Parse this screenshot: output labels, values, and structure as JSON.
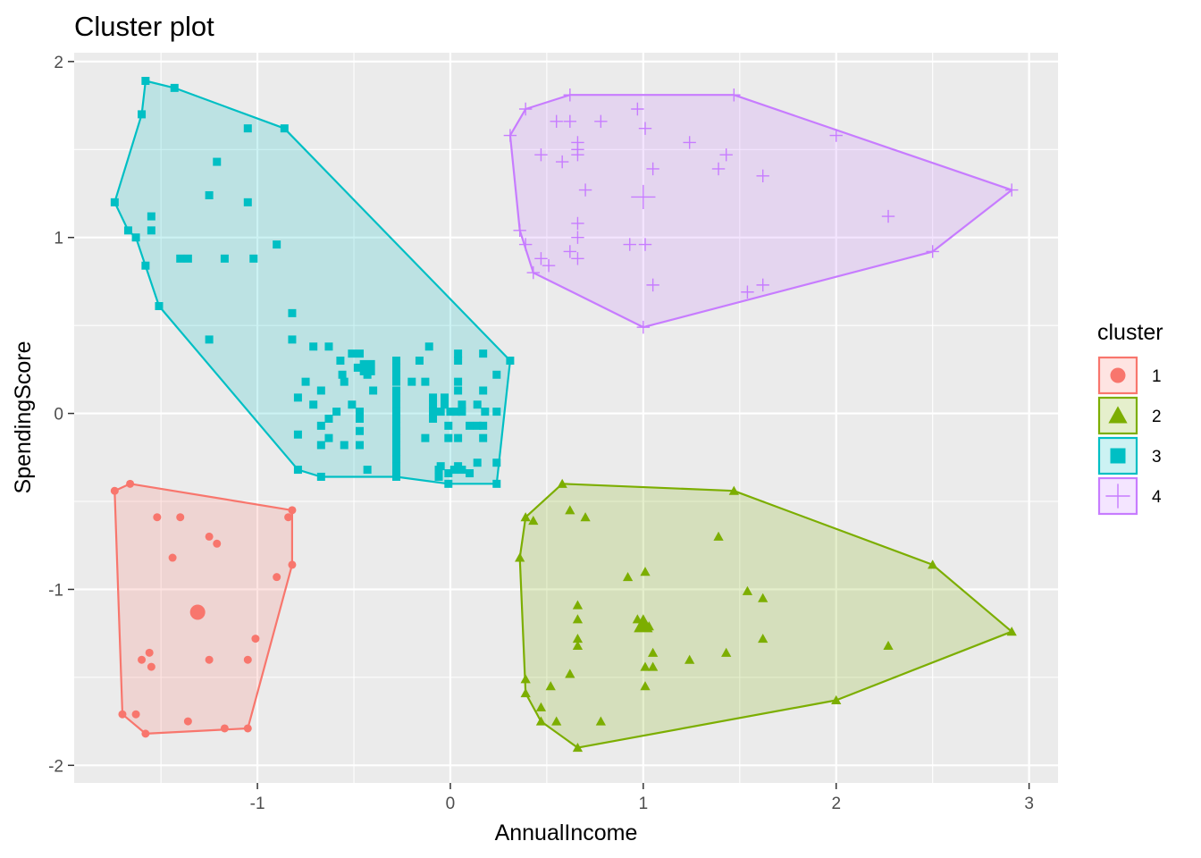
{
  "chart_data": {
    "type": "scatter",
    "title": "Cluster plot",
    "xlabel": "AnnualIncome",
    "ylabel": "SpendingScore",
    "xlim": [
      -1.95,
      3.15
    ],
    "ylim": [
      -2.1,
      2.05
    ],
    "xticks": [
      -1,
      0,
      1,
      2,
      3
    ],
    "yticks": [
      -2,
      -1,
      0,
      1,
      2
    ],
    "grid": true,
    "legend": {
      "title": "cluster",
      "position": "right"
    },
    "series": [
      {
        "name": "1",
        "shape": "circle",
        "color": "#F8766D",
        "hull": [
          [
            -1.74,
            -0.44
          ],
          [
            -1.66,
            -0.4
          ],
          [
            -0.82,
            -0.55
          ],
          [
            -0.82,
            -0.86
          ],
          [
            -1.05,
            -1.79
          ],
          [
            -1.58,
            -1.82
          ],
          [
            -1.7,
            -1.71
          ]
        ],
        "centroid": [
          -1.31,
          -1.13
        ],
        "points": [
          [
            -1.74,
            -0.44
          ],
          [
            -1.66,
            -0.4
          ],
          [
            -1.52,
            -0.59
          ],
          [
            -1.4,
            -0.59
          ],
          [
            -0.84,
            -0.59
          ],
          [
            -0.82,
            -0.55
          ],
          [
            -1.25,
            -0.7
          ],
          [
            -1.21,
            -0.74
          ],
          [
            -1.44,
            -0.82
          ],
          [
            -0.82,
            -0.86
          ],
          [
            -0.9,
            -0.93
          ],
          [
            -1.01,
            -1.28
          ],
          [
            -1.56,
            -1.36
          ],
          [
            -1.6,
            -1.4
          ],
          [
            -1.55,
            -1.44
          ],
          [
            -1.25,
            -1.4
          ],
          [
            -1.05,
            -1.4
          ],
          [
            -1.7,
            -1.71
          ],
          [
            -1.63,
            -1.71
          ],
          [
            -1.36,
            -1.75
          ],
          [
            -1.17,
            -1.79
          ],
          [
            -1.05,
            -1.79
          ],
          [
            -1.58,
            -1.82
          ]
        ]
      },
      {
        "name": "2",
        "shape": "triangle",
        "color": "#7CAE00",
        "hull": [
          [
            0.58,
            -0.4
          ],
          [
            1.47,
            -0.44
          ],
          [
            2.5,
            -0.86
          ],
          [
            2.91,
            -1.24
          ],
          [
            2.0,
            -1.63
          ],
          [
            0.66,
            -1.9
          ],
          [
            0.47,
            -1.75
          ],
          [
            0.39,
            -1.59
          ],
          [
            0.36,
            -0.82
          ],
          [
            0.39,
            -0.59
          ]
        ],
        "centroid": [
          1.0,
          -1.2
        ],
        "points": [
          [
            0.58,
            -0.4
          ],
          [
            1.47,
            -0.44
          ],
          [
            0.39,
            -0.59
          ],
          [
            0.43,
            -0.61
          ],
          [
            0.62,
            -0.55
          ],
          [
            0.7,
            -0.59
          ],
          [
            1.39,
            -0.7
          ],
          [
            0.36,
            -0.82
          ],
          [
            2.5,
            -0.86
          ],
          [
            1.01,
            -0.9
          ],
          [
            0.92,
            -0.93
          ],
          [
            1.54,
            -1.01
          ],
          [
            1.62,
            -1.05
          ],
          [
            0.66,
            -1.09
          ],
          [
            0.66,
            -1.17
          ],
          [
            0.97,
            -1.17
          ],
          [
            1.0,
            -1.17
          ],
          [
            1.03,
            -1.21
          ],
          [
            0.66,
            -1.28
          ],
          [
            1.62,
            -1.28
          ],
          [
            0.66,
            -1.32
          ],
          [
            2.27,
            -1.32
          ],
          [
            1.05,
            -1.36
          ],
          [
            1.43,
            -1.36
          ],
          [
            1.24,
            -1.4
          ],
          [
            1.01,
            -1.44
          ],
          [
            1.05,
            -1.44
          ],
          [
            0.62,
            -1.48
          ],
          [
            0.39,
            -1.51
          ],
          [
            0.52,
            -1.55
          ],
          [
            1.01,
            -1.55
          ],
          [
            0.39,
            -1.59
          ],
          [
            2.0,
            -1.63
          ],
          [
            0.47,
            -1.67
          ],
          [
            0.47,
            -1.75
          ],
          [
            0.55,
            -1.75
          ],
          [
            0.78,
            -1.75
          ],
          [
            2.91,
            -1.24
          ],
          [
            0.66,
            -1.9
          ]
        ]
      },
      {
        "name": "3",
        "shape": "square",
        "color": "#00BFC4",
        "hull": [
          [
            -1.58,
            1.89
          ],
          [
            -1.43,
            1.85
          ],
          [
            -0.86,
            1.62
          ],
          [
            0.31,
            0.3
          ],
          [
            0.24,
            -0.4
          ],
          [
            -0.01,
            -0.4
          ],
          [
            -0.28,
            -0.36
          ],
          [
            -0.67,
            -0.36
          ],
          [
            -0.79,
            -0.32
          ],
          [
            -1.51,
            0.61
          ],
          [
            -1.63,
            1.0
          ],
          [
            -1.67,
            1.04
          ],
          [
            -1.74,
            1.2
          ],
          [
            -1.6,
            1.7
          ]
        ],
        "centroid": [
          -0.43,
          0.26
        ],
        "points": [
          [
            -1.58,
            1.89
          ],
          [
            -1.43,
            1.85
          ],
          [
            -1.6,
            1.7
          ],
          [
            -1.05,
            1.62
          ],
          [
            -0.86,
            1.62
          ],
          [
            -1.21,
            1.43
          ],
          [
            -1.74,
            1.2
          ],
          [
            -1.25,
            1.24
          ],
          [
            -1.05,
            1.2
          ],
          [
            -1.55,
            1.12
          ],
          [
            -1.67,
            1.04
          ],
          [
            -1.55,
            1.04
          ],
          [
            -1.63,
            1.0
          ],
          [
            -0.9,
            0.96
          ],
          [
            -1.4,
            0.88
          ],
          [
            -1.36,
            0.88
          ],
          [
            -1.17,
            0.88
          ],
          [
            -1.02,
            0.88
          ],
          [
            -1.58,
            0.84
          ],
          [
            -1.51,
            0.61
          ],
          [
            -0.82,
            0.57
          ],
          [
            -1.25,
            0.42
          ],
          [
            -0.82,
            0.42
          ],
          [
            -0.71,
            0.38
          ],
          [
            -0.63,
            0.38
          ],
          [
            -0.51,
            0.34
          ],
          [
            -0.47,
            0.34
          ],
          [
            -0.11,
            0.38
          ],
          [
            0.04,
            0.34
          ],
          [
            0.17,
            0.34
          ],
          [
            -0.57,
            0.3
          ],
          [
            -0.28,
            0.3
          ],
          [
            -0.16,
            0.3
          ],
          [
            0.04,
            0.3
          ],
          [
            0.31,
            0.3
          ],
          [
            -0.48,
            0.26
          ],
          [
            -0.44,
            0.26
          ],
          [
            -0.43,
            0.22
          ],
          [
            -0.56,
            0.22
          ],
          [
            -0.28,
            0.26
          ],
          [
            -0.28,
            0.22
          ],
          [
            -0.28,
            0.18
          ],
          [
            -0.28,
            0.13
          ],
          [
            -0.28,
            0.09
          ],
          [
            -0.28,
            0.05
          ],
          [
            -0.28,
            0.01
          ],
          [
            -0.28,
            -0.03
          ],
          [
            -0.75,
            0.18
          ],
          [
            -0.55,
            0.18
          ],
          [
            -0.2,
            0.18
          ],
          [
            -0.13,
            0.18
          ],
          [
            0.04,
            0.18
          ],
          [
            0.24,
            0.22
          ],
          [
            -0.67,
            0.13
          ],
          [
            -0.4,
            0.13
          ],
          [
            -0.79,
            0.09
          ],
          [
            0.04,
            0.13
          ],
          [
            0.17,
            0.13
          ],
          [
            -0.71,
            0.05
          ],
          [
            -0.51,
            0.05
          ],
          [
            -0.59,
            0.01
          ],
          [
            -0.47,
            0.01
          ],
          [
            -0.63,
            -0.03
          ],
          [
            -0.47,
            -0.03
          ],
          [
            -0.09,
            0.09
          ],
          [
            -0.09,
            0.05
          ],
          [
            -0.03,
            0.09
          ],
          [
            -0.03,
            0.05
          ],
          [
            0.06,
            0.05
          ],
          [
            0.14,
            0.05
          ],
          [
            0.0,
            0.01
          ],
          [
            0.03,
            0.01
          ],
          [
            0.06,
            0.01
          ],
          [
            0.18,
            0.01
          ],
          [
            0.24,
            0.01
          ],
          [
            -0.09,
            0.01
          ],
          [
            -0.05,
            0.01
          ],
          [
            -0.67,
            -0.07
          ],
          [
            -0.28,
            -0.07
          ],
          [
            0.1,
            -0.07
          ],
          [
            0.14,
            -0.07
          ],
          [
            0.17,
            -0.07
          ],
          [
            -0.09,
            -0.03
          ],
          [
            -0.01,
            -0.07
          ],
          [
            -0.47,
            -0.1
          ],
          [
            -0.28,
            -0.1
          ],
          [
            -0.28,
            -0.14
          ],
          [
            -0.28,
            -0.18
          ],
          [
            -0.79,
            -0.12
          ],
          [
            -0.63,
            -0.14
          ],
          [
            -0.55,
            -0.18
          ],
          [
            -0.67,
            -0.18
          ],
          [
            -0.47,
            -0.18
          ],
          [
            -0.13,
            -0.14
          ],
          [
            -0.01,
            -0.14
          ],
          [
            0.04,
            -0.14
          ],
          [
            0.17,
            -0.14
          ],
          [
            -0.28,
            -0.22
          ],
          [
            -0.28,
            -0.26
          ],
          [
            -0.28,
            -0.3
          ],
          [
            -0.28,
            -0.34
          ],
          [
            -0.28,
            -0.36
          ],
          [
            -0.05,
            -0.3
          ],
          [
            0.04,
            -0.3
          ],
          [
            0.14,
            -0.28
          ],
          [
            0.24,
            -0.28
          ],
          [
            -0.79,
            -0.32
          ],
          [
            -0.43,
            -0.32
          ],
          [
            -0.67,
            -0.36
          ],
          [
            -0.06,
            -0.32
          ],
          [
            -0.01,
            -0.34
          ],
          [
            0.1,
            -0.34
          ],
          [
            -0.06,
            -0.36
          ],
          [
            -0.01,
            -0.4
          ],
          [
            0.24,
            -0.4
          ],
          [
            0.02,
            -0.32
          ],
          [
            0.06,
            -0.32
          ]
        ]
      },
      {
        "name": "4",
        "shape": "plus",
        "color": "#C77CFF",
        "hull": [
          [
            0.62,
            1.81
          ],
          [
            1.47,
            1.81
          ],
          [
            2.91,
            1.27
          ],
          [
            2.5,
            0.92
          ],
          [
            1.0,
            0.49
          ],
          [
            0.43,
            0.8
          ],
          [
            0.36,
            1.04
          ],
          [
            0.31,
            1.58
          ],
          [
            0.39,
            1.73
          ]
        ],
        "centroid": [
          1.0,
          1.23
        ],
        "points": [
          [
            0.62,
            1.81
          ],
          [
            1.47,
            1.81
          ],
          [
            0.39,
            1.73
          ],
          [
            0.97,
            1.73
          ],
          [
            0.55,
            1.66
          ],
          [
            0.78,
            1.66
          ],
          [
            0.62,
            1.66
          ],
          [
            1.01,
            1.62
          ],
          [
            0.31,
            1.58
          ],
          [
            2.0,
            1.58
          ],
          [
            0.66,
            1.54
          ],
          [
            1.24,
            1.54
          ],
          [
            0.66,
            1.5
          ],
          [
            0.47,
            1.47
          ],
          [
            0.66,
            1.47
          ],
          [
            1.43,
            1.47
          ],
          [
            0.58,
            1.43
          ],
          [
            1.05,
            1.39
          ],
          [
            1.39,
            1.39
          ],
          [
            1.62,
            1.35
          ],
          [
            0.7,
            1.27
          ],
          [
            2.91,
            1.27
          ],
          [
            2.27,
            1.12
          ],
          [
            0.66,
            1.08
          ],
          [
            0.36,
            1.04
          ],
          [
            0.66,
            1.0
          ],
          [
            0.39,
            0.96
          ],
          [
            0.93,
            0.96
          ],
          [
            1.01,
            0.96
          ],
          [
            0.62,
            0.92
          ],
          [
            2.5,
            0.92
          ],
          [
            0.47,
            0.88
          ],
          [
            0.66,
            0.88
          ],
          [
            0.51,
            0.84
          ],
          [
            0.43,
            0.8
          ],
          [
            1.05,
            0.73
          ],
          [
            1.62,
            0.73
          ],
          [
            1.54,
            0.69
          ],
          [
            1.0,
            0.49
          ]
        ]
      }
    ]
  }
}
